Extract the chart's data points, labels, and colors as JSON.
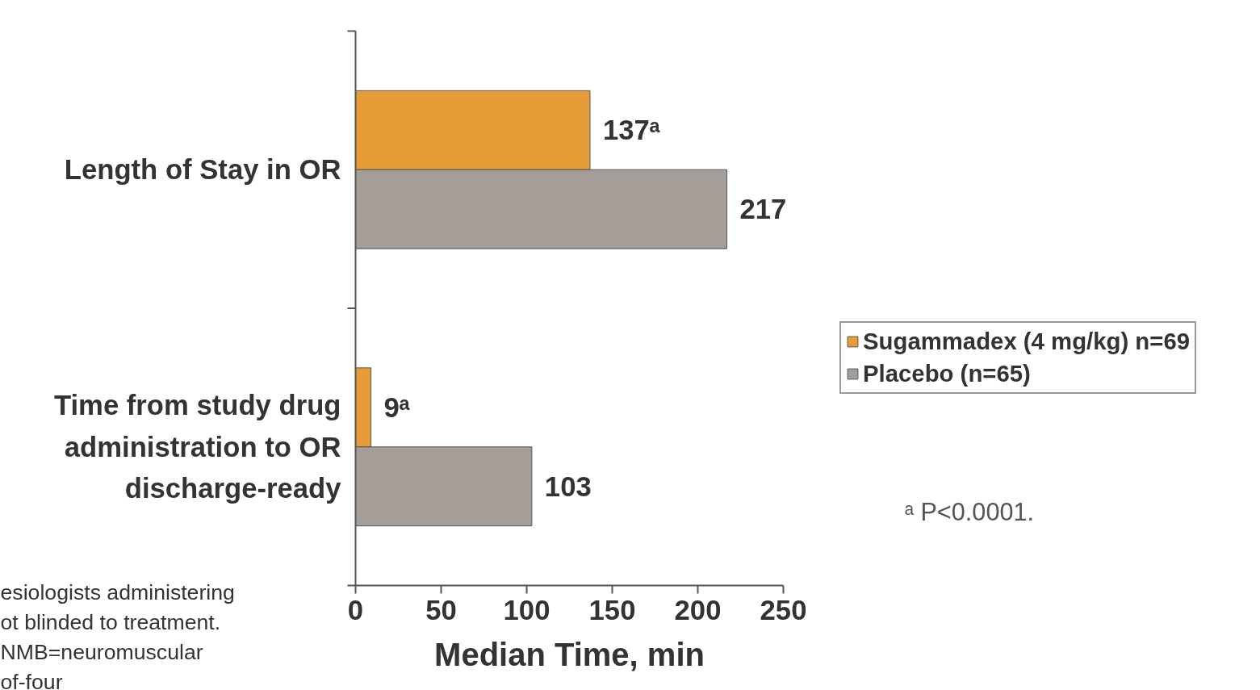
{
  "chart_data": {
    "type": "bar",
    "orientation": "horizontal",
    "categories": [
      "Length of Stay in OR",
      "Time from study drug administration to OR discharge-ready"
    ],
    "series": [
      {
        "name": "Sugammadex (4 mg/kg) n=69",
        "color": "#e69c37",
        "values": [
          137,
          9
        ],
        "value_labels": [
          "137ᵃ",
          "9ᵃ"
        ]
      },
      {
        "name": "Placebo (n=65)",
        "color": "#a59d98",
        "values": [
          217,
          103
        ],
        "value_labels": [
          "217",
          "103"
        ]
      }
    ],
    "xlabel": "Median Time, min",
    "xlim": [
      0,
      250
    ],
    "xticks": [
      0,
      50,
      100,
      150,
      200,
      250
    ],
    "legend": "right",
    "grid": false,
    "annotations": [
      "ᵃ P<0.0001.",
      "esiologists administering\not blinded to treatment.\nNMB=neuromuscular\nof-four"
    ]
  }
}
